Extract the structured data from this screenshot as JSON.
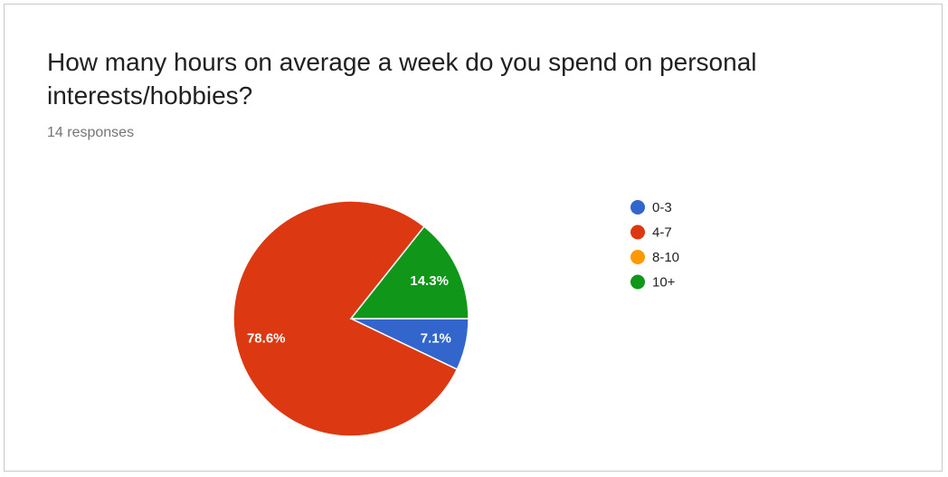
{
  "title": "How many hours on average a week do you spend on personal interests/hobbies?",
  "subtitle": "14 responses",
  "chart_data": {
    "type": "pie",
    "title": "How many hours on average a week do you spend on personal interests/hobbies?",
    "categories": [
      "0-3",
      "4-7",
      "8-10",
      "10+"
    ],
    "values": [
      7.1,
      78.6,
      0,
      14.3
    ],
    "value_labels": [
      "7.1%",
      "78.6%",
      "",
      "14.3%"
    ],
    "colors": [
      "#3366cc",
      "#dc3912",
      "#ff9900",
      "#109618"
    ],
    "legend": "right"
  }
}
